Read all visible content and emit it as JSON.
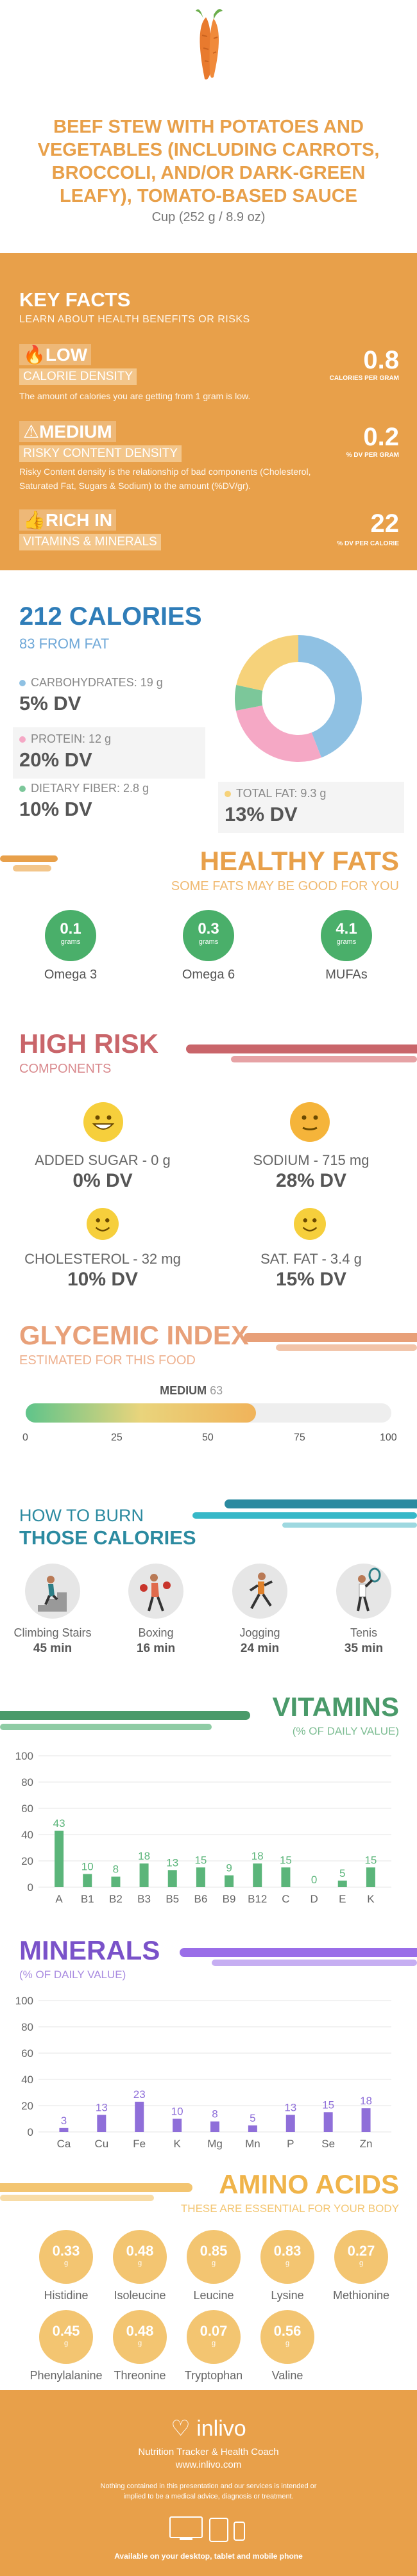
{
  "header": {
    "title": "BEEF STEW WITH POTATOES AND VEGETABLES (INCLUDING CARROTS, BROCCOLI, AND/OR DARK-GREEN LEAFY), TOMATO-BASED SAUCE",
    "serving": "Cup (252 g / 8.9 oz)",
    "icon": "carrot-icon"
  },
  "key_facts": {
    "title": "KEY FACTS",
    "subtitle": "LEARN ABOUT HEALTH BENEFITS OR RISKS",
    "items": [
      {
        "level": "LOW",
        "label": "CALORIE DENSITY",
        "desc": "The amount of calories you are getting from 1 gram is low.",
        "value": "0.8",
        "unit": "CALORIES PER GRAM",
        "icon": "flame-icon"
      },
      {
        "level": "MEDIUM",
        "label": "RISKY CONTENT DENSITY",
        "desc": "Risky Content density is the relationship of bad components (Cholesterol, Saturated Fat, Sugars & Sodium) to the amount (%DV/gr).",
        "value": "0.2",
        "unit": "% DV PER GRAM",
        "icon": "warning-icon"
      },
      {
        "level": "RICH  IN",
        "label": "VITAMINS & MINERALS",
        "desc": "",
        "value": "22",
        "unit": "% DV PER CALORIE",
        "icon": "thumbs-up-icon"
      }
    ]
  },
  "calories": {
    "title": "212 CALORIES",
    "subtitle": "83 FROM FAT",
    "macros": [
      {
        "label": "CARBOHYDRATES: 19 g",
        "value": "5% DV",
        "color": "#8fc1e3"
      },
      {
        "label": "PROTEIN: 12 g",
        "value": "20% DV",
        "color": "#f5a8c5"
      },
      {
        "label": "DIETARY FIBER: 2.8 g",
        "value": "10% DV",
        "color": "#7cc79a"
      },
      {
        "label": "TOTAL FAT: 9.3 g",
        "value": "13% DV",
        "color": "#f6d27a"
      }
    ],
    "donut": [
      {
        "name": "carbohydrates",
        "value": 19,
        "color": "#8fc1e3"
      },
      {
        "name": "protein",
        "value": 12,
        "color": "#f5a8c5"
      },
      {
        "name": "fiber",
        "value": 2.8,
        "color": "#7cc79a"
      },
      {
        "name": "fat",
        "value": 9.3,
        "color": "#f6d27a"
      }
    ]
  },
  "healthy_fats": {
    "title": "HEALTHY FATS",
    "subtitle": "SOME FATS MAY BE GOOD FOR YOU",
    "unit": "grams",
    "items": [
      {
        "value": "0.1",
        "label": "Omega 3"
      },
      {
        "value": "0.3",
        "label": "Omega 6"
      },
      {
        "value": "4.1",
        "label": "MUFAs"
      }
    ]
  },
  "high_risk": {
    "title": "HIGH RISK",
    "subtitle": "COMPONENTS",
    "items": [
      {
        "label": "ADDED SUGAR - 0 g",
        "value": "0% DV",
        "face": "grinning-face-icon"
      },
      {
        "label": "SODIUM - 715 mg",
        "value": "28% DV",
        "face": "neutral-face-icon"
      },
      {
        "label": "CHOLESTEROL - 32 mg",
        "value": "10% DV",
        "face": "smiling-face-icon"
      },
      {
        "label": "SAT. FAT - 3.4 g",
        "value": "15% DV",
        "face": "smiling-face-icon"
      }
    ]
  },
  "glycemic": {
    "title": "GLYCEMIC INDEX",
    "subtitle": "ESTIMATED FOR THIS FOOD",
    "level": "MEDIUM",
    "value": 63,
    "value_text": "63",
    "ticks": [
      "0",
      "25",
      "50",
      "75",
      "100"
    ]
  },
  "burn": {
    "title1": "HOW TO BURN",
    "title2": "THOSE CALORIES",
    "items": [
      {
        "label": "Climbing Stairs",
        "value": "45 min",
        "icon": "stairs-icon"
      },
      {
        "label": "Boxing",
        "value": "16 min",
        "icon": "boxing-icon"
      },
      {
        "label": "Jogging",
        "value": "24 min",
        "icon": "jogging-icon"
      },
      {
        "label": "Tenis",
        "value": "35 min",
        "icon": "tennis-icon"
      }
    ]
  },
  "vitamins": {
    "title": "VITAMINS",
    "subtitle": "(% OF DAILY VALUE)",
    "chart_data": {
      "type": "bar",
      "categories": [
        "A",
        "B1",
        "B2",
        "B3",
        "B5",
        "B6",
        "B9",
        "B12",
        "C",
        "D",
        "E",
        "K"
      ],
      "values": [
        43,
        10,
        8,
        18,
        13,
        15,
        9,
        18,
        15,
        0,
        5,
        15
      ],
      "ylim": [
        0,
        100
      ],
      "yticks": [
        "0",
        "20",
        "40",
        "60",
        "80",
        "100"
      ],
      "color": "#5bb57a"
    }
  },
  "minerals": {
    "title": "MINERALS",
    "subtitle": "(% OF DAILY VALUE)",
    "chart_data": {
      "type": "bar",
      "categories": [
        "Ca",
        "Cu",
        "Fe",
        "K",
        "Mg",
        "Mn",
        "P",
        "Se",
        "Zn"
      ],
      "values": [
        3,
        13,
        23,
        10,
        8,
        5,
        13,
        15,
        18
      ],
      "ylim": [
        0,
        100
      ],
      "yticks": [
        "0",
        "20",
        "40",
        "60",
        "80",
        "100"
      ],
      "color": "#8f6fd9"
    }
  },
  "amino": {
    "title": "AMINO ACIDS",
    "subtitle": "THESE ARE ESSENTIAL FOR YOUR BODY",
    "unit": "g",
    "items": [
      {
        "value": "0.33",
        "label": "Histidine"
      },
      {
        "value": "0.48",
        "label": "Isoleucine"
      },
      {
        "value": "0.85",
        "label": "Leucine"
      },
      {
        "value": "0.83",
        "label": "Lysine"
      },
      {
        "value": "0.27",
        "label": "Methionine"
      },
      {
        "value": "0.45",
        "label": "Phenylalanine"
      },
      {
        "value": "0.48",
        "label": "Threonine"
      },
      {
        "value": "0.07",
        "label": "Tryptophan"
      },
      {
        "value": "0.56",
        "label": "Valine"
      }
    ]
  },
  "footer": {
    "brand": "inlivo",
    "tagline": "Nutrition Tracker & Health Coach",
    "url": "www.inlivo.com",
    "disclaimer": "Nothing contained in this presentation and our services is intended or implied to be a medical advice, diagnosis or treatment.",
    "available": "Available on your desktop, tablet and mobile phone"
  }
}
